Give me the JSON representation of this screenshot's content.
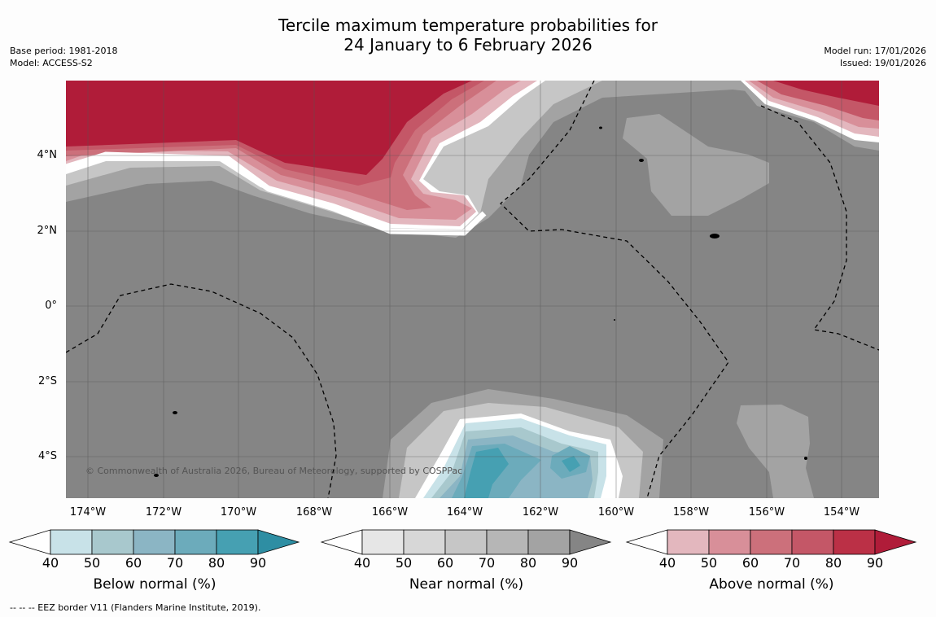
{
  "title_line1": "Tercile maximum temperature probabilities for",
  "title_line2": "24 January to 6 February 2026",
  "meta_left": {
    "base_period": "Base period: 1981-2018",
    "model": "Model: ACCESS-S2"
  },
  "meta_right": {
    "model_run": "Model run: 17/01/2026",
    "issued": "Issued: 19/01/2026"
  },
  "lat_labels": [
    "4°N",
    "2°N",
    "0°",
    "2°S",
    "4°S"
  ],
  "lon_labels": [
    "174°W",
    "172°W",
    "170°W",
    "168°W",
    "166°W",
    "164°W",
    "162°W",
    "160°W",
    "158°W",
    "156°W",
    "154°W"
  ],
  "copyright": "© Commonwealth of Australia 2026, Bureau of Meteorology, supported by COSPPac",
  "legend": {
    "below": {
      "title": "Below normal (%)",
      "ticks": [
        "40",
        "50",
        "60",
        "70",
        "80",
        "90"
      ],
      "colors": [
        "#ffffff",
        "#c8e2e8",
        "#a8c8cd",
        "#8bb5c4",
        "#6cabbb",
        "#46a0b2",
        "#2e8ea3"
      ]
    },
    "near": {
      "title": "Near normal (%)",
      "ticks": [
        "40",
        "50",
        "60",
        "70",
        "80",
        "90"
      ],
      "colors": [
        "#ffffff",
        "#e6e6e6",
        "#d7d7d7",
        "#c6c6c6",
        "#b6b6b6",
        "#a3a3a3",
        "#858585"
      ]
    },
    "above": {
      "title": "Above normal (%)",
      "ticks": [
        "40",
        "50",
        "60",
        "70",
        "80",
        "90"
      ],
      "colors": [
        "#ffffff",
        "#e3b7be",
        "#d88f99",
        "#cc707b",
        "#c45767",
        "#bb3046",
        "#b01c39"
      ]
    }
  },
  "footnote": "--  --  -- EEZ border V11 (Flanders Marine Institute, 2019)."
}
